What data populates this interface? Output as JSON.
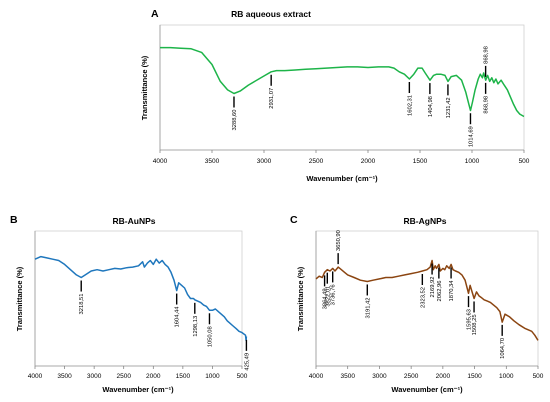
{
  "chart_data": [
    {
      "panel": "A",
      "type": "line",
      "title": "RB aqueous extract",
      "xlabel": "Wavenumber (cm⁻¹)",
      "ylabel": "Transmittance (%)",
      "xlim": [
        4000,
        500
      ],
      "x_reversed": true,
      "xticks": [
        4000,
        3500,
        3000,
        2500,
        2000,
        1500,
        1000,
        500
      ],
      "grid": false,
      "color": "#1db449",
      "series": [
        {
          "points": [
            [
              4000,
              83
            ],
            [
              3900,
              83
            ],
            [
              3800,
              82.5
            ],
            [
              3700,
              82
            ],
            [
              3600,
              79
            ],
            [
              3500,
              69
            ],
            [
              3420,
              55
            ],
            [
              3350,
              48
            ],
            [
              3288,
              45
            ],
            [
              3230,
              47
            ],
            [
              3150,
              52
            ],
            [
              3050,
              57
            ],
            [
              2990,
              60
            ],
            [
              2931,
              63
            ],
            [
              2880,
              64
            ],
            [
              2800,
              64
            ],
            [
              2700,
              64.5
            ],
            [
              2600,
              65
            ],
            [
              2500,
              65.5
            ],
            [
              2400,
              66
            ],
            [
              2300,
              66.5
            ],
            [
              2200,
              67
            ],
            [
              2100,
              67
            ],
            [
              2000,
              66.5
            ],
            [
              1900,
              67
            ],
            [
              1800,
              67
            ],
            [
              1750,
              66
            ],
            [
              1700,
              63
            ],
            [
              1650,
              61
            ],
            [
              1602,
              57
            ],
            [
              1560,
              61
            ],
            [
              1520,
              66
            ],
            [
              1480,
              66
            ],
            [
              1450,
              62
            ],
            [
              1404,
              56
            ],
            [
              1370,
              60
            ],
            [
              1340,
              61
            ],
            [
              1300,
              61
            ],
            [
              1260,
              60
            ],
            [
              1231,
              55
            ],
            [
              1200,
              59
            ],
            [
              1150,
              60
            ],
            [
              1100,
              56
            ],
            [
              1060,
              46
            ],
            [
              1030,
              36
            ],
            [
              1014,
              31
            ],
            [
              995,
              38
            ],
            [
              970,
              48
            ],
            [
              940,
              57
            ],
            [
              920,
              61
            ],
            [
              900,
              58
            ],
            [
              888,
              62
            ],
            [
              868,
              56
            ],
            [
              850,
              60
            ],
            [
              830,
              55
            ],
            [
              810,
              58
            ],
            [
              790,
              54
            ],
            [
              770,
              57
            ],
            [
              750,
              53
            ],
            [
              720,
              56
            ],
            [
              690,
              52
            ],
            [
              660,
              48
            ],
            [
              630,
              42
            ],
            [
              600,
              36
            ],
            [
              570,
              31
            ],
            [
              540,
              28
            ],
            [
              500,
              26
            ]
          ]
        }
      ],
      "peak_labels": [
        {
          "x": 3288.6,
          "label": "3288,60",
          "pos": "below"
        },
        {
          "x": 2931.07,
          "label": "2931,07",
          "pos": "below"
        },
        {
          "x": 1602.31,
          "label": "1602,31",
          "pos": "below"
        },
        {
          "x": 1404.98,
          "label": "1404,98",
          "pos": "below"
        },
        {
          "x": 1231.42,
          "label": "1231,42",
          "pos": "below"
        },
        {
          "x": 1014.69,
          "label": "1014,69",
          "pos": "below"
        },
        {
          "x": 868.98,
          "label": "868,98",
          "pos": "above"
        },
        {
          "x": 868.98,
          "label": "868,98",
          "pos": "below"
        }
      ]
    },
    {
      "panel": "B",
      "type": "line",
      "title": "RB-AuNPs",
      "xlabel": "Wavenumber (cm⁻¹)",
      "ylabel": "Transmittance (%)",
      "xlim": [
        4000,
        500
      ],
      "x_reversed": true,
      "xticks": [
        4000,
        3500,
        3000,
        2500,
        2000,
        1500,
        1000,
        500
      ],
      "grid": false,
      "color": "#1f77bd",
      "series": [
        {
          "points": [
            [
              4000,
              80
            ],
            [
              3900,
              82
            ],
            [
              3800,
              81
            ],
            [
              3700,
              80
            ],
            [
              3600,
              79
            ],
            [
              3500,
              76
            ],
            [
              3400,
              72
            ],
            [
              3300,
              68
            ],
            [
              3218,
              66
            ],
            [
              3150,
              68
            ],
            [
              3050,
              71
            ],
            [
              2950,
              72
            ],
            [
              2850,
              71
            ],
            [
              2750,
              72
            ],
            [
              2650,
              73
            ],
            [
              2550,
              72.5
            ],
            [
              2450,
              73.5
            ],
            [
              2350,
              74
            ],
            [
              2250,
              75
            ],
            [
              2180,
              78
            ],
            [
              2150,
              74
            ],
            [
              2100,
              77
            ],
            [
              2050,
              79
            ],
            [
              2000,
              76
            ],
            [
              1950,
              80
            ],
            [
              1900,
              77
            ],
            [
              1850,
              79
            ],
            [
              1800,
              76
            ],
            [
              1750,
              74
            ],
            [
              1700,
              70
            ],
            [
              1650,
              64
            ],
            [
              1604,
              56
            ],
            [
              1570,
              62
            ],
            [
              1520,
              60
            ],
            [
              1470,
              58
            ],
            [
              1420,
              53
            ],
            [
              1370,
              50
            ],
            [
              1320,
              50
            ],
            [
              1298,
              49
            ],
            [
              1250,
              48
            ],
            [
              1200,
              47
            ],
            [
              1150,
              45
            ],
            [
              1100,
              44
            ],
            [
              1050,
              41
            ],
            [
              1000,
              41
            ],
            [
              950,
              42
            ],
            [
              900,
              40
            ],
            [
              850,
              38
            ],
            [
              800,
              36
            ],
            [
              750,
              33
            ],
            [
              700,
              31
            ],
            [
              650,
              29
            ],
            [
              600,
              27
            ],
            [
              550,
              25
            ],
            [
              500,
              24
            ],
            [
              440,
              22
            ],
            [
              430,
              18
            ],
            [
              425,
              21
            ]
          ]
        }
      ],
      "peak_labels": [
        {
          "x": 3218.51,
          "label": "3218,51",
          "pos": "below"
        },
        {
          "x": 1604.44,
          "label": "1604,44",
          "pos": "below"
        },
        {
          "x": 1298.13,
          "label": "1298,13",
          "pos": "below"
        },
        {
          "x": 1050.08,
          "label": "1050,08",
          "pos": "below"
        },
        {
          "x": 425.49,
          "label": "425,49",
          "pos": "below"
        }
      ]
    },
    {
      "panel": "C",
      "type": "line",
      "title": "RB-AgNPs",
      "xlabel": "Wavenumber (cm⁻¹)",
      "ylabel": "Transmittance (%)",
      "xlim": [
        4000,
        500
      ],
      "x_reversed": true,
      "xticks": [
        4000,
        3500,
        3000,
        2500,
        2000,
        1500,
        1000,
        500
      ],
      "grid": false,
      "color": "#8b4511",
      "series": [
        {
          "points": [
            [
              4000,
              65
            ],
            [
              3950,
              67
            ],
            [
              3900,
              66
            ],
            [
              3864,
              70
            ],
            [
              3822,
              72
            ],
            [
              3780,
              71
            ],
            [
              3736,
              73
            ],
            [
              3700,
              71
            ],
            [
              3650,
              74
            ],
            [
              3600,
              72
            ],
            [
              3550,
              70
            ],
            [
              3500,
              68
            ],
            [
              3400,
              66
            ],
            [
              3300,
              64
            ],
            [
              3191,
              63
            ],
            [
              3100,
              64
            ],
            [
              3000,
              65
            ],
            [
              2900,
              66
            ],
            [
              2800,
              66
            ],
            [
              2700,
              67
            ],
            [
              2600,
              68
            ],
            [
              2500,
              69
            ],
            [
              2400,
              70
            ],
            [
              2323,
              71
            ],
            [
              2250,
              72
            ],
            [
              2200,
              74
            ],
            [
              2170,
              79
            ],
            [
              2150,
              72
            ],
            [
              2120,
              75
            ],
            [
              2100,
              73
            ],
            [
              2062,
              76
            ],
            [
              2040,
              71
            ],
            [
              2000,
              73
            ],
            [
              1970,
              72
            ],
            [
              1940,
              75
            ],
            [
              1900,
              73
            ],
            [
              1870,
              76
            ],
            [
              1840,
              72
            ],
            [
              1800,
              71
            ],
            [
              1750,
              70
            ],
            [
              1700,
              68
            ],
            [
              1650,
              64
            ],
            [
              1595,
              54
            ],
            [
              1570,
              60
            ],
            [
              1508,
              50
            ],
            [
              1470,
              55
            ],
            [
              1430,
              52
            ],
            [
              1400,
              51
            ],
            [
              1350,
              49
            ],
            [
              1300,
              48
            ],
            [
              1250,
              47
            ],
            [
              1200,
              45
            ],
            [
              1150,
              43
            ],
            [
              1100,
              40
            ],
            [
              1064,
              32
            ],
            [
              1020,
              38
            ],
            [
              950,
              36
            ],
            [
              880,
              33
            ],
            [
              800,
              30
            ],
            [
              700,
              27
            ],
            [
              600,
              25
            ],
            [
              550,
              22
            ],
            [
              500,
              18
            ]
          ]
        }
      ],
      "peak_labels": [
        {
          "x": 3864.49,
          "label": "3864,49",
          "pos": "below"
        },
        {
          "x": 3822.01,
          "label": "3822,01",
          "pos": "below"
        },
        {
          "x": 3736.76,
          "label": "3736,76",
          "pos": "below"
        },
        {
          "x": 3650.9,
          "label": "3650,90",
          "pos": "above"
        },
        {
          "x": 3191.42,
          "label": "3191,42",
          "pos": "below"
        },
        {
          "x": 2323.52,
          "label": "2323,52",
          "pos": "below"
        },
        {
          "x": 2169.92,
          "label": "2169,92",
          "pos": "below"
        },
        {
          "x": 2062.96,
          "label": "2062,96",
          "pos": "below"
        },
        {
          "x": 1870.34,
          "label": "1870,34",
          "pos": "below"
        },
        {
          "x": 1595.63,
          "label": "1595,63",
          "pos": "below"
        },
        {
          "x": 1508.25,
          "label": "1508,25",
          "pos": "below"
        },
        {
          "x": 1064.7,
          "label": "1064,70",
          "pos": "below"
        }
      ]
    }
  ]
}
